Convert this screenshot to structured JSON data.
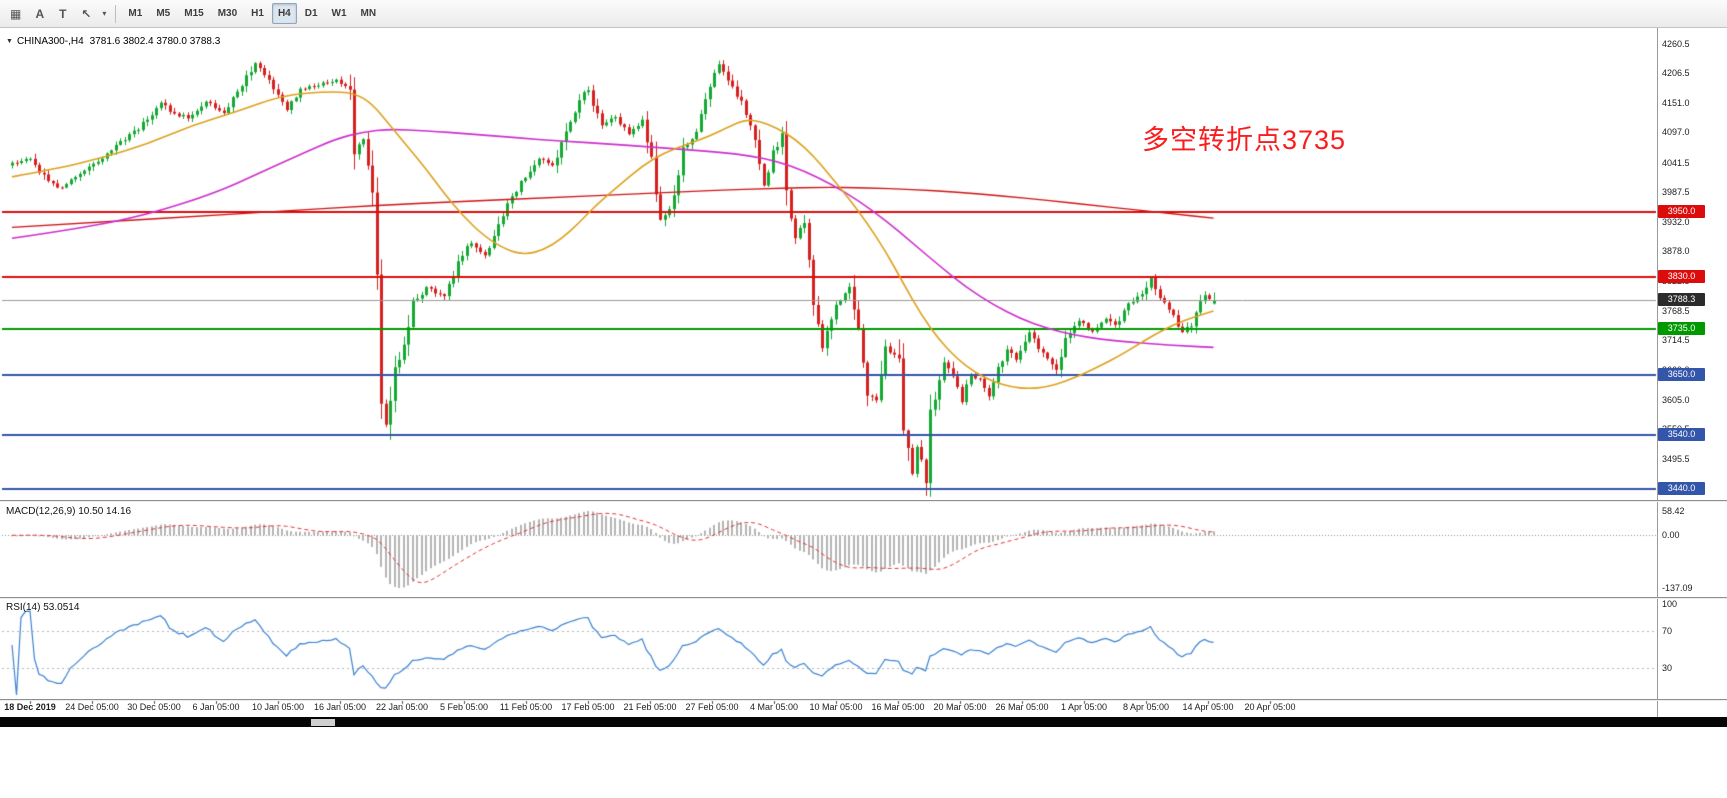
{
  "toolbar": {
    "tools": [
      {
        "name": "grid-tool",
        "glyph": "▦"
      },
      {
        "name": "text-tool",
        "glyph": "A"
      },
      {
        "name": "label-tool",
        "glyph": "T"
      },
      {
        "name": "arrow-tool",
        "glyph": "↖"
      },
      {
        "name": "arrow-dropdown",
        "glyph": "▾"
      }
    ],
    "timeframes": [
      "M1",
      "M5",
      "M15",
      "M30",
      "H1",
      "H4",
      "D1",
      "W1",
      "MN"
    ],
    "active_timeframe": "H4"
  },
  "symbol_bar": {
    "dropdown_glyph": "▼",
    "title": "CHINA300-,H4",
    "ohlc": "3781.6 3802.4 3780.0 3788.3"
  },
  "annotation": {
    "text": "多空转折点3735",
    "color": "#fb1d1d"
  },
  "price_axis": {
    "ticks": [
      4260.5,
      4206.5,
      4151.0,
      4097.0,
      4041.5,
      3987.5,
      3932.0,
      3878.0,
      3822.5,
      3768.5,
      3714.5,
      3660.0,
      3605.0,
      3550.5,
      3495.5,
      3441.0
    ]
  },
  "levels": [
    {
      "value": 3950.0,
      "label": "3950.0",
      "color": "#dd0c0c"
    },
    {
      "value": 3830.0,
      "label": "3830.0",
      "color": "#dd0c0c"
    },
    {
      "value": 3735.0,
      "label": "3735.0",
      "color": "#009a00"
    },
    {
      "value": 3650.0,
      "label": "3650.0",
      "color": "#3355aa"
    },
    {
      "value": 3540.0,
      "label": "3540.0",
      "color": "#3355aa"
    },
    {
      "value": 3440.0,
      "label": "3440.0",
      "color": "#3355aa"
    }
  ],
  "current_price": {
    "value": 3788.3,
    "label": "3788.3",
    "badge_color": "#2b2b2b",
    "line_color": "#9a9a9a"
  },
  "macd_panel": {
    "title": "MACD(12,26,9) 10.50 14.16",
    "axis_labels": {
      "top": "58.42",
      "zero": "0.00",
      "bottom": "-137.09"
    }
  },
  "rsi_panel": {
    "title": "RSI(14) 53.0514",
    "axis_labels": [
      "100",
      "70",
      "30"
    ]
  },
  "time_axis": {
    "labels": [
      "18 Dec 2019",
      "24 Dec 05:00",
      "30 Dec 05:00",
      "6 Jan 05:00",
      "10 Jan 05:00",
      "16 Jan 05:00",
      "22 Jan 05:00",
      "5 Feb 05:00",
      "11 Feb 05:00",
      "17 Feb 05:00",
      "21 Feb 05:00",
      "27 Feb 05:00",
      "4 Mar 05:00",
      "10 Mar 05:00",
      "16 Mar 05:00",
      "20 Mar 05:00",
      "26 Mar 05:00",
      "1 Apr 05:00",
      "8 Apr 05:00",
      "14 Apr 05:00",
      "20 Apr 05:00"
    ]
  },
  "chart_data": {
    "type": "candlestick",
    "symbol": "CHINA300-",
    "timeframe": "H4",
    "last_ohlc": {
      "open": 3781.6,
      "high": 3802.4,
      "low": 3780.0,
      "close": 3788.3
    },
    "price_range": [
      3420,
      4280
    ],
    "bar_count": 268,
    "up_color": "#16a834",
    "down_color": "#d62020",
    "price_path": [
      [
        0,
        4040
      ],
      [
        4,
        4048
      ],
      [
        8,
        4005
      ],
      [
        11,
        3995
      ],
      [
        16,
        4025
      ],
      [
        22,
        4065
      ],
      [
        28,
        4105
      ],
      [
        33,
        4150
      ],
      [
        36,
        4130
      ],
      [
        39,
        4125
      ],
      [
        43,
        4152
      ],
      [
        47,
        4135
      ],
      [
        51,
        4185
      ],
      [
        54,
        4222
      ],
      [
        57,
        4195
      ],
      [
        61,
        4140
      ],
      [
        64,
        4175
      ],
      [
        68,
        4185
      ],
      [
        72,
        4192
      ],
      [
        75,
        4180
      ],
      [
        76,
        4060
      ],
      [
        78,
        4090
      ],
      [
        80,
        3990
      ],
      [
        81,
        3830
      ],
      [
        82,
        3590
      ],
      [
        83,
        3560
      ],
      [
        85,
        3660
      ],
      [
        87,
        3700
      ],
      [
        89,
        3780
      ],
      [
        92,
        3812
      ],
      [
        96,
        3795
      ],
      [
        99,
        3860
      ],
      [
        102,
        3895
      ],
      [
        105,
        3870
      ],
      [
        108,
        3930
      ],
      [
        111,
        3980
      ],
      [
        114,
        4015
      ],
      [
        117,
        4050
      ],
      [
        120,
        4035
      ],
      [
        123,
        4095
      ],
      [
        126,
        4160
      ],
      [
        128,
        4175
      ],
      [
        131,
        4110
      ],
      [
        134,
        4125
      ],
      [
        137,
        4095
      ],
      [
        140,
        4115
      ],
      [
        142,
        4050
      ],
      [
        144,
        3930
      ],
      [
        147,
        3975
      ],
      [
        149,
        4070
      ],
      [
        152,
        4095
      ],
      [
        154,
        4150
      ],
      [
        157,
        4222
      ],
      [
        160,
        4180
      ],
      [
        162,
        4150
      ],
      [
        165,
        4085
      ],
      [
        167,
        4000
      ],
      [
        169,
        4060
      ],
      [
        171,
        4090
      ],
      [
        172,
        3990
      ],
      [
        174,
        3900
      ],
      [
        176,
        3935
      ],
      [
        178,
        3780
      ],
      [
        180,
        3700
      ],
      [
        183,
        3780
      ],
      [
        186,
        3815
      ],
      [
        188,
        3740
      ],
      [
        190,
        3620
      ],
      [
        192,
        3600
      ],
      [
        194,
        3700
      ],
      [
        197,
        3680
      ],
      [
        198,
        3550
      ],
      [
        200,
        3470
      ],
      [
        201,
        3520
      ],
      [
        203,
        3460
      ],
      [
        204,
        3580
      ],
      [
        207,
        3670
      ],
      [
        209,
        3650
      ],
      [
        211,
        3600
      ],
      [
        213,
        3650
      ],
      [
        215,
        3640
      ],
      [
        217,
        3610
      ],
      [
        219,
        3660
      ],
      [
        221,
        3700
      ],
      [
        223,
        3680
      ],
      [
        226,
        3730
      ],
      [
        229,
        3690
      ],
      [
        232,
        3660
      ],
      [
        234,
        3720
      ],
      [
        237,
        3750
      ],
      [
        240,
        3730
      ],
      [
        243,
        3755
      ],
      [
        245,
        3740
      ],
      [
        248,
        3780
      ],
      [
        251,
        3800
      ],
      [
        253,
        3830
      ],
      [
        255,
        3790
      ],
      [
        258,
        3760
      ],
      [
        260,
        3730
      ],
      [
        262,
        3745
      ],
      [
        264,
        3780
      ],
      [
        265,
        3795
      ],
      [
        267,
        3788.3
      ]
    ],
    "moving_averages": [
      {
        "name": "slow-ma",
        "color": "#cc1414",
        "points": [
          [
            0,
            3922
          ],
          [
            20,
            3932
          ],
          [
            40,
            3942
          ],
          [
            60,
            3952
          ],
          [
            80,
            3962
          ],
          [
            100,
            3970
          ],
          [
            120,
            3977
          ],
          [
            140,
            3984
          ],
          [
            155,
            3990
          ],
          [
            170,
            3994
          ],
          [
            180,
            3996
          ],
          [
            190,
            3995
          ],
          [
            200,
            3992
          ],
          [
            210,
            3987
          ],
          [
            220,
            3980
          ],
          [
            230,
            3972
          ],
          [
            240,
            3963
          ],
          [
            250,
            3954
          ],
          [
            258,
            3947
          ],
          [
            267,
            3939
          ]
        ]
      },
      {
        "name": "medium-ma",
        "color": "#cc2fcc",
        "points": [
          [
            0,
            3902
          ],
          [
            15,
            3920
          ],
          [
            30,
            3945
          ],
          [
            45,
            3985
          ],
          [
            55,
            4022
          ],
          [
            65,
            4060
          ],
          [
            72,
            4085
          ],
          [
            78,
            4098
          ],
          [
            84,
            4103
          ],
          [
            92,
            4100
          ],
          [
            102,
            4094
          ],
          [
            112,
            4087
          ],
          [
            122,
            4081
          ],
          [
            132,
            4076
          ],
          [
            142,
            4070
          ],
          [
            150,
            4065
          ],
          [
            158,
            4060
          ],
          [
            164,
            4054
          ],
          [
            170,
            4044
          ],
          [
            176,
            4026
          ],
          [
            182,
            4002
          ],
          [
            188,
            3972
          ],
          [
            194,
            3936
          ],
          [
            200,
            3894
          ],
          [
            206,
            3852
          ],
          [
            212,
            3812
          ],
          [
            218,
            3780
          ],
          [
            224,
            3754
          ],
          [
            230,
            3736
          ],
          [
            236,
            3724
          ],
          [
            242,
            3716
          ],
          [
            248,
            3711
          ],
          [
            254,
            3707
          ],
          [
            260,
            3704
          ],
          [
            267,
            3701
          ]
        ]
      },
      {
        "name": "fast-ma",
        "color": "#dca01e",
        "points": [
          [
            0,
            4015
          ],
          [
            10,
            4030
          ],
          [
            20,
            4050
          ],
          [
            30,
            4075
          ],
          [
            40,
            4110
          ],
          [
            50,
            4135
          ],
          [
            60,
            4165
          ],
          [
            70,
            4172
          ],
          [
            76,
            4170
          ],
          [
            80,
            4150
          ],
          [
            84,
            4110
          ],
          [
            88,
            4070
          ],
          [
            92,
            4030
          ],
          [
            96,
            3985
          ],
          [
            100,
            3945
          ],
          [
            105,
            3905
          ],
          [
            110,
            3880
          ],
          [
            114,
            3872
          ],
          [
            118,
            3880
          ],
          [
            122,
            3900
          ],
          [
            126,
            3930
          ],
          [
            130,
            3965
          ],
          [
            135,
            4000
          ],
          [
            140,
            4035
          ],
          [
            145,
            4060
          ],
          [
            150,
            4075
          ],
          [
            155,
            4090
          ],
          [
            160,
            4110
          ],
          [
            163,
            4120
          ],
          [
            166,
            4118
          ],
          [
            170,
            4105
          ],
          [
            174,
            4085
          ],
          [
            178,
            4055
          ],
          [
            182,
            4015
          ],
          [
            186,
            3975
          ],
          [
            190,
            3930
          ],
          [
            194,
            3880
          ],
          [
            198,
            3820
          ],
          [
            202,
            3762
          ],
          [
            206,
            3715
          ],
          [
            210,
            3680
          ],
          [
            214,
            3655
          ],
          [
            218,
            3638
          ],
          [
            222,
            3628
          ],
          [
            226,
            3625
          ],
          [
            230,
            3628
          ],
          [
            234,
            3638
          ],
          [
            238,
            3652
          ],
          [
            242,
            3668
          ],
          [
            246,
            3685
          ],
          [
            250,
            3705
          ],
          [
            254,
            3725
          ],
          [
            258,
            3742
          ],
          [
            262,
            3755
          ],
          [
            267,
            3768
          ]
        ]
      }
    ],
    "macd": {
      "fast": 12,
      "slow": 26,
      "signal": 9,
      "histogram_color": "#b4b4b4",
      "signal_color": "#e03535",
      "last_macd": 10.5,
      "last_signal": 14.16,
      "axis_max": 58.42,
      "axis_min": -137.09
    },
    "rsi": {
      "period": 14,
      "color": "#3b82d0",
      "last": 53.0514,
      "levels": [
        70,
        30
      ]
    }
  }
}
